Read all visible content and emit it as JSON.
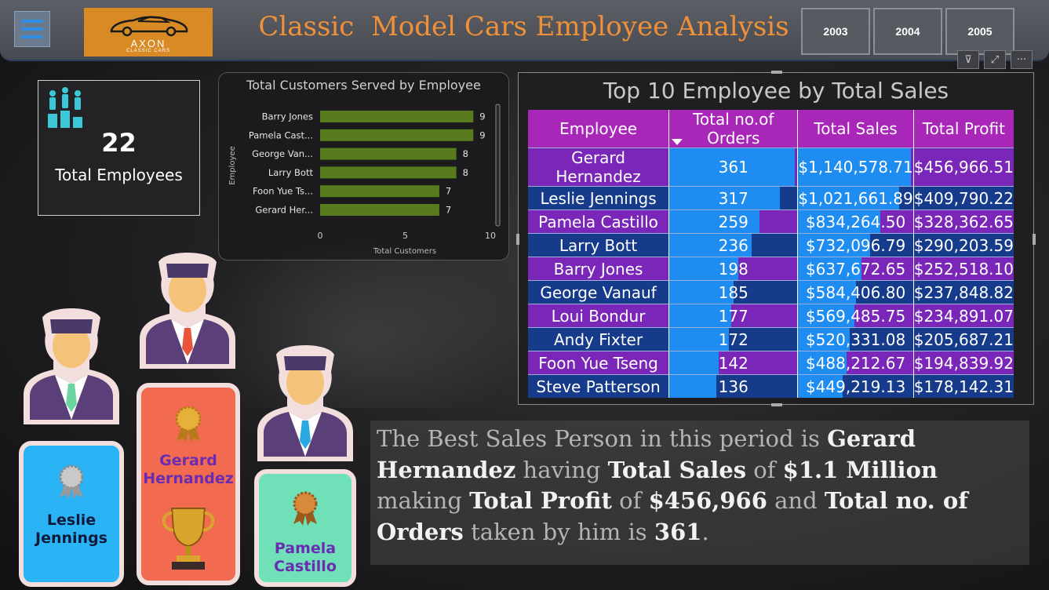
{
  "header": {
    "menu_icon": "hamburger-icon",
    "logo": {
      "text": "AXON",
      "sub": "CLASSIC CARS"
    },
    "title": "Classic  Model Cars Employee Analysis",
    "years": [
      "2003",
      "2004",
      "2005"
    ]
  },
  "toolbar": {
    "icons": [
      "filter-icon",
      "focus-mode-icon",
      "more-options-icon"
    ],
    "more_label": "···",
    "filter_label": "⊽",
    "focus_label": "⤢"
  },
  "kpi": {
    "value": "22",
    "label": "Total Employees",
    "icon": "people-podium-icon"
  },
  "chart_data": {
    "type": "bar",
    "orientation": "horizontal",
    "title": "Total Customers Served by Employee",
    "xlabel": "Total Customers",
    "ylabel": "Employee",
    "categories": [
      "Barry Jones",
      "Pamela Cast...",
      "George Van...",
      "Larry Bott",
      "Foon Yue Ts...",
      "Gerard Her..."
    ],
    "values": [
      9,
      9,
      8,
      8,
      7,
      7
    ],
    "xlim": [
      0,
      10
    ],
    "xticks": [
      0,
      5,
      10
    ],
    "color": "#5a7a1e"
  },
  "table": {
    "title": "Top 10 Employee by Total Sales",
    "columns": [
      "Employee",
      "Total no.of Orders",
      "Total Sales",
      "Total Profit"
    ],
    "max_orders": 361,
    "max_sales": 1140578.71,
    "rows": [
      {
        "employee": "Gerard Hernandez",
        "orders": 361,
        "sales": "$1,140,578.71",
        "sales_value": 1140578.71,
        "profit": "$456,966.51"
      },
      {
        "employee": "Leslie Jennings",
        "orders": 317,
        "sales": "$1,021,661.89",
        "sales_value": 1021661.89,
        "profit": "$409,790.22"
      },
      {
        "employee": "Pamela Castillo",
        "orders": 259,
        "sales": "$834,264.50",
        "sales_value": 834264.5,
        "profit": "$328,362.65"
      },
      {
        "employee": "Larry Bott",
        "orders": 236,
        "sales": "$732,096.79",
        "sales_value": 732096.79,
        "profit": "$290,203.59"
      },
      {
        "employee": "Barry Jones",
        "orders": 198,
        "sales": "$637,672.65",
        "sales_value": 637672.65,
        "profit": "$252,518.10"
      },
      {
        "employee": "George Vanauf",
        "orders": 185,
        "sales": "$584,406.80",
        "sales_value": 584406.8,
        "profit": "$237,848.82"
      },
      {
        "employee": "Loui Bondur",
        "orders": 177,
        "sales": "$569,485.75",
        "sales_value": 569485.75,
        "profit": "$234,891.07"
      },
      {
        "employee": "Andy Fixter",
        "orders": 172,
        "sales": "$520,331.08",
        "sales_value": 520331.08,
        "profit": "$205,687.21"
      },
      {
        "employee": "Foon Yue Tseng",
        "orders": 142,
        "sales": "$488,212.67",
        "sales_value": 488212.67,
        "profit": "$194,839.92"
      },
      {
        "employee": "Steve Patterson",
        "orders": 136,
        "sales": "$449,219.13",
        "sales_value": 449219.13,
        "profit": "$178,142.31"
      }
    ]
  },
  "podium": {
    "first": {
      "line1": "Gerard",
      "line2": "Hernandez",
      "color": "#f26a4f",
      "text_color": "#6a2cb0"
    },
    "second": {
      "line1": "Leslie",
      "line2": "Jennings",
      "color": "#2ab3f5",
      "text_color": "#0e1a3a"
    },
    "third": {
      "line1": "Pamela",
      "line2": "Castillo",
      "color": "#6fe0b8",
      "text_color": "#6a2cb0"
    }
  },
  "summary": {
    "p1": "The Best Sales Person in this  period is ",
    "name": "Gerard Hernandez",
    "p2": " having ",
    "k1": "Total Sales",
    "p3": " of ",
    "v1": "$1.1 Million",
    "p4": " making ",
    "k2": "Total Profit",
    "p5": " of  ",
    "v2": "$456,966",
    "p6": "  and ",
    "k3": "Total no. of Orders",
    "p7": "  taken by him is ",
    "v3": "361",
    "p8": "."
  }
}
